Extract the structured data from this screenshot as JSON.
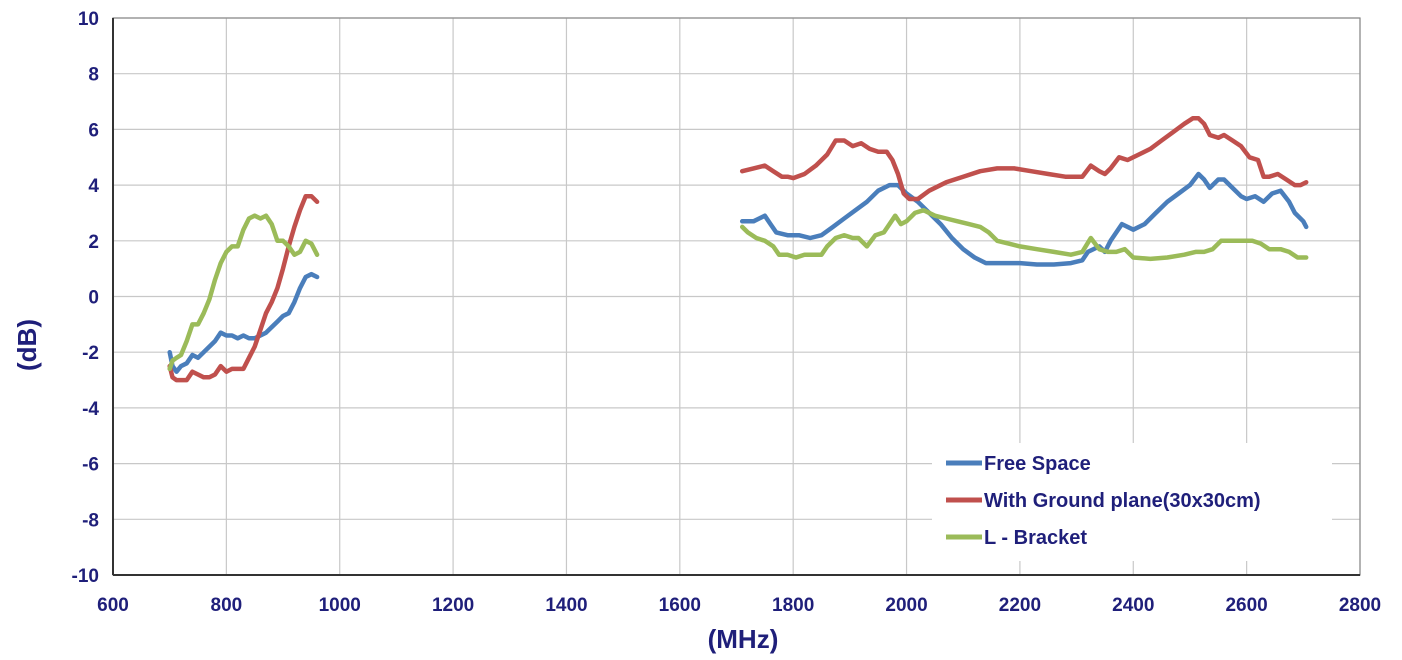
{
  "chart_data": {
    "type": "line",
    "title": "",
    "xlabel": "(MHz)",
    "ylabel": "(dB)",
    "xlim": [
      600,
      2800
    ],
    "ylim": [
      -10,
      10
    ],
    "x_ticks": [
      600,
      800,
      1000,
      1200,
      1400,
      1600,
      1800,
      2000,
      2200,
      2400,
      2600,
      2800
    ],
    "y_ticks": [
      10,
      8,
      6,
      4,
      2,
      0,
      -2,
      -4,
      -6,
      -8,
      -10
    ],
    "grid": true,
    "legend_position": "bottom-right",
    "series": [
      {
        "name": "Free Space",
        "color": "#4a7ebb",
        "segments": [
          [
            [
              700,
              -2.0
            ],
            [
              705,
              -2.5
            ],
            [
              712,
              -2.7
            ],
            [
              720,
              -2.5
            ],
            [
              730,
              -2.4
            ],
            [
              740,
              -2.1
            ],
            [
              750,
              -2.2
            ],
            [
              760,
              -2.0
            ],
            [
              770,
              -1.8
            ],
            [
              780,
              -1.6
            ],
            [
              790,
              -1.3
            ],
            [
              800,
              -1.4
            ],
            [
              810,
              -1.4
            ],
            [
              820,
              -1.5
            ],
            [
              830,
              -1.4
            ],
            [
              840,
              -1.5
            ],
            [
              850,
              -1.5
            ],
            [
              860,
              -1.4
            ],
            [
              870,
              -1.3
            ],
            [
              880,
              -1.1
            ],
            [
              890,
              -0.9
            ],
            [
              900,
              -0.7
            ],
            [
              910,
              -0.6
            ],
            [
              920,
              -0.2
            ],
            [
              930,
              0.3
            ],
            [
              940,
              0.7
            ],
            [
              950,
              0.8
            ],
            [
              960,
              0.7
            ]
          ],
          [
            [
              1710,
              2.7
            ],
            [
              1720,
              2.7
            ],
            [
              1730,
              2.7
            ],
            [
              1740,
              2.8
            ],
            [
              1750,
              2.9
            ],
            [
              1760,
              2.6
            ],
            [
              1770,
              2.3
            ],
            [
              1790,
              2.2
            ],
            [
              1810,
              2.2
            ],
            [
              1830,
              2.1
            ],
            [
              1850,
              2.2
            ],
            [
              1870,
              2.5
            ],
            [
              1890,
              2.8
            ],
            [
              1910,
              3.1
            ],
            [
              1930,
              3.4
            ],
            [
              1950,
              3.8
            ],
            [
              1970,
              4.0
            ],
            [
              1985,
              4.0
            ],
            [
              2000,
              3.7
            ],
            [
              2020,
              3.4
            ],
            [
              2040,
              3.0
            ],
            [
              2060,
              2.6
            ],
            [
              2080,
              2.1
            ],
            [
              2100,
              1.7
            ],
            [
              2120,
              1.4
            ],
            [
              2140,
              1.2
            ],
            [
              2160,
              1.2
            ],
            [
              2180,
              1.2
            ],
            [
              2200,
              1.2
            ],
            [
              2230,
              1.15
            ],
            [
              2260,
              1.15
            ],
            [
              2290,
              1.2
            ],
            [
              2310,
              1.3
            ],
            [
              2320,
              1.6
            ],
            [
              2340,
              1.8
            ],
            [
              2350,
              1.6
            ],
            [
              2360,
              2.0
            ],
            [
              2380,
              2.6
            ],
            [
              2400,
              2.4
            ],
            [
              2420,
              2.6
            ],
            [
              2440,
              3.0
            ],
            [
              2460,
              3.4
            ],
            [
              2480,
              3.7
            ],
            [
              2500,
              4.0
            ],
            [
              2515,
              4.4
            ],
            [
              2525,
              4.2
            ],
            [
              2535,
              3.9
            ],
            [
              2550,
              4.2
            ],
            [
              2560,
              4.2
            ],
            [
              2575,
              3.9
            ],
            [
              2590,
              3.6
            ],
            [
              2600,
              3.5
            ],
            [
              2615,
              3.6
            ],
            [
              2630,
              3.4
            ],
            [
              2645,
              3.7
            ],
            [
              2660,
              3.8
            ],
            [
              2675,
              3.4
            ],
            [
              2685,
              3.0
            ],
            [
              2700,
              2.7
            ],
            [
              2705,
              2.5
            ]
          ]
        ]
      },
      {
        "name": "With Ground plane(30x30cm)",
        "color": "#c0504d",
        "segments": [
          [
            [
              700,
              -2.5
            ],
            [
              705,
              -2.9
            ],
            [
              712,
              -3.0
            ],
            [
              722,
              -3.0
            ],
            [
              730,
              -3.0
            ],
            [
              740,
              -2.7
            ],
            [
              750,
              -2.8
            ],
            [
              760,
              -2.9
            ],
            [
              770,
              -2.9
            ],
            [
              780,
              -2.8
            ],
            [
              790,
              -2.5
            ],
            [
              800,
              -2.7
            ],
            [
              810,
              -2.6
            ],
            [
              820,
              -2.6
            ],
            [
              830,
              -2.6
            ],
            [
              840,
              -2.2
            ],
            [
              850,
              -1.8
            ],
            [
              860,
              -1.2
            ],
            [
              870,
              -0.6
            ],
            [
              880,
              -0.2
            ],
            [
              890,
              0.3
            ],
            [
              900,
              1.0
            ],
            [
              910,
              1.8
            ],
            [
              920,
              2.5
            ],
            [
              930,
              3.1
            ],
            [
              940,
              3.6
            ],
            [
              950,
              3.6
            ],
            [
              960,
              3.4
            ]
          ],
          [
            [
              1710,
              4.5
            ],
            [
              1730,
              4.6
            ],
            [
              1750,
              4.7
            ],
            [
              1765,
              4.5
            ],
            [
              1780,
              4.3
            ],
            [
              1790,
              4.3
            ],
            [
              1800,
              4.25
            ],
            [
              1820,
              4.4
            ],
            [
              1840,
              4.7
            ],
            [
              1860,
              5.1
            ],
            [
              1875,
              5.6
            ],
            [
              1890,
              5.6
            ],
            [
              1905,
              5.4
            ],
            [
              1920,
              5.5
            ],
            [
              1935,
              5.3
            ],
            [
              1950,
              5.2
            ],
            [
              1965,
              5.2
            ],
            [
              1975,
              4.9
            ],
            [
              1985,
              4.4
            ],
            [
              1995,
              3.7
            ],
            [
              2005,
              3.5
            ],
            [
              2020,
              3.5
            ],
            [
              2040,
              3.8
            ],
            [
              2070,
              4.1
            ],
            [
              2100,
              4.3
            ],
            [
              2130,
              4.5
            ],
            [
              2160,
              4.6
            ],
            [
              2190,
              4.6
            ],
            [
              2220,
              4.5
            ],
            [
              2250,
              4.4
            ],
            [
              2280,
              4.3
            ],
            [
              2310,
              4.3
            ],
            [
              2325,
              4.7
            ],
            [
              2340,
              4.5
            ],
            [
              2350,
              4.4
            ],
            [
              2360,
              4.6
            ],
            [
              2375,
              5.0
            ],
            [
              2390,
              4.9
            ],
            [
              2410,
              5.1
            ],
            [
              2430,
              5.3
            ],
            [
              2450,
              5.6
            ],
            [
              2470,
              5.9
            ],
            [
              2490,
              6.2
            ],
            [
              2505,
              6.4
            ],
            [
              2515,
              6.4
            ],
            [
              2525,
              6.2
            ],
            [
              2535,
              5.8
            ],
            [
              2550,
              5.7
            ],
            [
              2560,
              5.8
            ],
            [
              2575,
              5.6
            ],
            [
              2590,
              5.4
            ],
            [
              2605,
              5.0
            ],
            [
              2620,
              4.9
            ],
            [
              2630,
              4.3
            ],
            [
              2640,
              4.3
            ],
            [
              2655,
              4.4
            ],
            [
              2670,
              4.2
            ],
            [
              2685,
              4.0
            ],
            [
              2695,
              4.0
            ],
            [
              2705,
              4.1
            ]
          ]
        ]
      },
      {
        "name": "L - Bracket",
        "color": "#9bbb59",
        "segments": [
          [
            [
              700,
              -2.6
            ],
            [
              705,
              -2.3
            ],
            [
              712,
              -2.2
            ],
            [
              720,
              -2.1
            ],
            [
              730,
              -1.6
            ],
            [
              740,
              -1.0
            ],
            [
              750,
              -1.0
            ],
            [
              760,
              -0.6
            ],
            [
              770,
              -0.1
            ],
            [
              780,
              0.6
            ],
            [
              790,
              1.2
            ],
            [
              800,
              1.6
            ],
            [
              810,
              1.8
            ],
            [
              820,
              1.8
            ],
            [
              830,
              2.4
            ],
            [
              840,
              2.8
            ],
            [
              850,
              2.9
            ],
            [
              860,
              2.8
            ],
            [
              870,
              2.9
            ],
            [
              880,
              2.6
            ],
            [
              890,
              2.0
            ],
            [
              900,
              2.0
            ],
            [
              910,
              1.8
            ],
            [
              920,
              1.5
            ],
            [
              930,
              1.6
            ],
            [
              940,
              2.0
            ],
            [
              950,
              1.9
            ],
            [
              960,
              1.5
            ]
          ],
          [
            [
              1710,
              2.5
            ],
            [
              1720,
              2.3
            ],
            [
              1735,
              2.1
            ],
            [
              1750,
              2.0
            ],
            [
              1765,
              1.8
            ],
            [
              1775,
              1.5
            ],
            [
              1790,
              1.5
            ],
            [
              1805,
              1.4
            ],
            [
              1820,
              1.5
            ],
            [
              1835,
              1.5
            ],
            [
              1850,
              1.5
            ],
            [
              1860,
              1.8
            ],
            [
              1875,
              2.1
            ],
            [
              1890,
              2.2
            ],
            [
              1905,
              2.1
            ],
            [
              1915,
              2.1
            ],
            [
              1930,
              1.8
            ],
            [
              1945,
              2.2
            ],
            [
              1960,
              2.3
            ],
            [
              1970,
              2.6
            ],
            [
              1980,
              2.9
            ],
            [
              1990,
              2.6
            ],
            [
              2000,
              2.7
            ],
            [
              2015,
              3.0
            ],
            [
              2030,
              3.1
            ],
            [
              2050,
              2.9
            ],
            [
              2070,
              2.8
            ],
            [
              2090,
              2.7
            ],
            [
              2110,
              2.6
            ],
            [
              2130,
              2.5
            ],
            [
              2145,
              2.3
            ],
            [
              2160,
              2.0
            ],
            [
              2180,
              1.9
            ],
            [
              2200,
              1.8
            ],
            [
              2230,
              1.7
            ],
            [
              2260,
              1.6
            ],
            [
              2290,
              1.5
            ],
            [
              2310,
              1.6
            ],
            [
              2325,
              2.1
            ],
            [
              2340,
              1.7
            ],
            [
              2355,
              1.6
            ],
            [
              2370,
              1.6
            ],
            [
              2385,
              1.7
            ],
            [
              2400,
              1.4
            ],
            [
              2430,
              1.35
            ],
            [
              2460,
              1.4
            ],
            [
              2490,
              1.5
            ],
            [
              2510,
              1.6
            ],
            [
              2525,
              1.6
            ],
            [
              2540,
              1.7
            ],
            [
              2555,
              2.0
            ],
            [
              2570,
              2.0
            ],
            [
              2590,
              2.0
            ],
            [
              2610,
              2.0
            ],
            [
              2625,
              1.9
            ],
            [
              2640,
              1.7
            ],
            [
              2660,
              1.7
            ],
            [
              2675,
              1.6
            ],
            [
              2690,
              1.4
            ],
            [
              2705,
              1.4
            ]
          ]
        ]
      }
    ]
  }
}
